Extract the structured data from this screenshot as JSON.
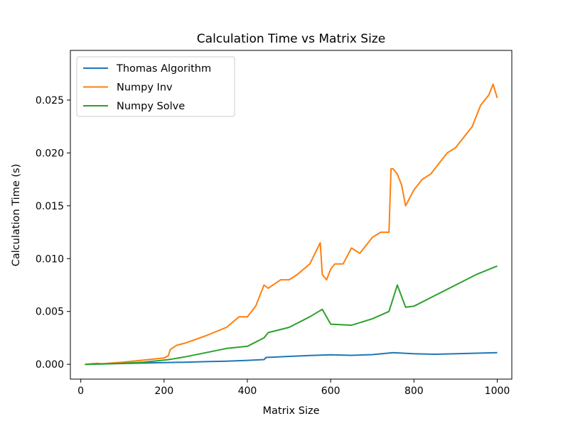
{
  "chart_data": {
    "type": "line",
    "title": "Calculation Time vs Matrix Size",
    "xlabel": "Matrix Size",
    "ylabel": "Calculation Time (s)",
    "xlim": [
      -25,
      1035
    ],
    "ylim": [
      -0.0014,
      0.0297
    ],
    "xticks": [
      0,
      200,
      400,
      600,
      800,
      1000
    ],
    "xtick_labels": [
      "0",
      "200",
      "400",
      "600",
      "800",
      "1000"
    ],
    "yticks": [
      0.0,
      0.005,
      0.01,
      0.015,
      0.02,
      0.025
    ],
    "ytick_labels": [
      "0.000",
      "0.005",
      "0.010",
      "0.015",
      "0.020",
      "0.025"
    ],
    "grid": false,
    "legend": "top-left",
    "series": [
      {
        "name": "Thomas Algorithm",
        "color": "#1f77b4",
        "x": [
          10,
          50,
          100,
          150,
          200,
          250,
          300,
          350,
          400,
          440,
          445,
          500,
          550,
          600,
          650,
          700,
          750,
          800,
          850,
          900,
          950,
          1000
        ],
        "y": [
          0.0,
          4e-05,
          8e-05,
          0.00012,
          0.00016,
          0.0002,
          0.00025,
          0.0003,
          0.00037,
          0.00045,
          0.00065,
          0.00075,
          0.00083,
          0.0009,
          0.00085,
          0.00092,
          0.0011,
          0.001,
          0.00095,
          0.001,
          0.00105,
          0.0011
        ]
      },
      {
        "name": "Numpy Inv",
        "color": "#ff7f0e",
        "x": [
          10,
          40,
          50,
          100,
          150,
          200,
          210,
          215,
          230,
          250,
          300,
          350,
          380,
          400,
          420,
          440,
          450,
          480,
          500,
          520,
          550,
          575,
          580,
          590,
          600,
          610,
          630,
          650,
          670,
          690,
          700,
          720,
          740,
          745,
          750,
          760,
          770,
          780,
          800,
          820,
          840,
          860,
          880,
          900,
          920,
          940,
          950,
          960,
          970,
          980,
          990,
          1000
        ],
        "y": [
          0.0,
          0.0001,
          5e-05,
          0.0002,
          0.0004,
          0.0006,
          0.0008,
          0.0014,
          0.0018,
          0.002,
          0.0027,
          0.0035,
          0.0045,
          0.0045,
          0.0055,
          0.0075,
          0.0072,
          0.008,
          0.008,
          0.0085,
          0.0095,
          0.0115,
          0.0085,
          0.008,
          0.009,
          0.0095,
          0.0095,
          0.011,
          0.0105,
          0.0115,
          0.012,
          0.0125,
          0.0125,
          0.0185,
          0.0185,
          0.018,
          0.017,
          0.015,
          0.0165,
          0.0175,
          0.018,
          0.019,
          0.02,
          0.0205,
          0.0215,
          0.0225,
          0.0235,
          0.0245,
          0.025,
          0.0255,
          0.0265,
          0.0252
        ]
      },
      {
        "name": "Numpy Solve",
        "color": "#2ca02c",
        "x": [
          10,
          50,
          100,
          150,
          200,
          220,
          250,
          300,
          350,
          400,
          440,
          450,
          500,
          550,
          580,
          600,
          650,
          700,
          740,
          760,
          780,
          800,
          850,
          900,
          950,
          1000
        ],
        "y": [
          0.0,
          3e-05,
          0.0001,
          0.0002,
          0.0004,
          0.0005,
          0.0007,
          0.0011,
          0.0015,
          0.0017,
          0.0025,
          0.003,
          0.0035,
          0.0045,
          0.0052,
          0.0038,
          0.0037,
          0.0043,
          0.005,
          0.0075,
          0.0054,
          0.0055,
          0.0065,
          0.0075,
          0.0085,
          0.0093
        ]
      }
    ]
  }
}
